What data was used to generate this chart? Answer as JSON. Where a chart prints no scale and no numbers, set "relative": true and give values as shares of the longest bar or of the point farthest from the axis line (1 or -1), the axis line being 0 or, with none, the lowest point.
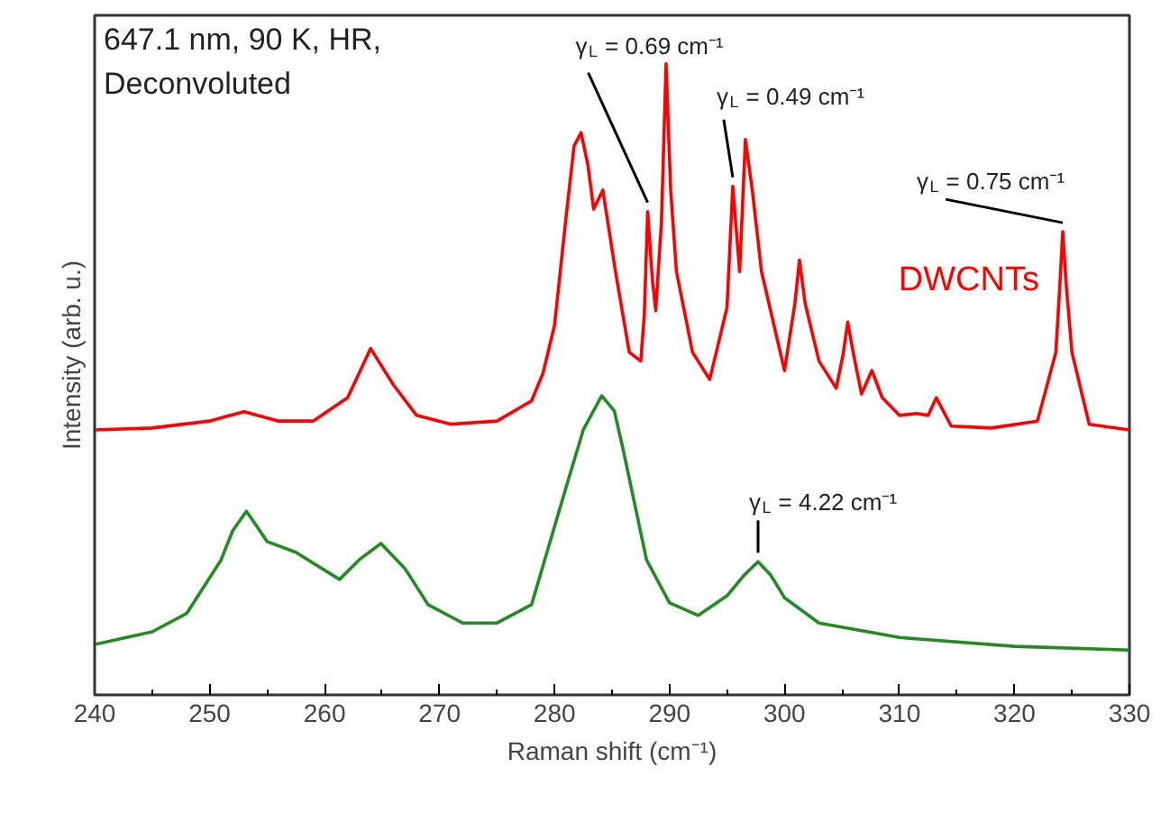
{
  "chart_data": {
    "type": "line",
    "relative": true,
    "xlabel": "Raman shift (cm⁻¹)",
    "ylabel": "Intensity (arb. u.)",
    "xlim": [
      240,
      330
    ],
    "xticks": [
      240,
      250,
      260,
      270,
      280,
      290,
      300,
      310,
      320,
      330
    ],
    "grid": false,
    "marker": "none",
    "line_style": "solid",
    "series": [
      {
        "name": "DWCNTs",
        "color": "#ff0000",
        "x": [
          240,
          245,
          250,
          253,
          256,
          259,
          262,
          264,
          266,
          268,
          271,
          275,
          278,
          279,
          280,
          281,
          281.7,
          282.3,
          282.9,
          283.4,
          284.2,
          285.3,
          286.5,
          287.5,
          287.8,
          288.1,
          288.5,
          288.8,
          289.3,
          289.7,
          290.1,
          290.6,
          292,
          293.5,
          295,
          295.5,
          296.1,
          296.6,
          297.2,
          298,
          300,
          300.9,
          301.3,
          301.8,
          303,
          304.5,
          305.1,
          305.5,
          306,
          306.7,
          307.6,
          308.5,
          310,
          311.5,
          312.5,
          313.2,
          314.5,
          318,
          322,
          323.6,
          323.95,
          324.2,
          324.5,
          325,
          326.5,
          330
        ],
        "values": [
          0.42,
          0.423,
          0.434,
          0.449,
          0.434,
          0.434,
          0.471,
          0.549,
          0.491,
          0.443,
          0.429,
          0.434,
          0.466,
          0.51,
          0.586,
          0.757,
          0.87,
          0.891,
          0.84,
          0.77,
          0.8,
          0.671,
          0.543,
          0.529,
          0.6,
          0.766,
          0.66,
          0.609,
          0.75,
          1.0,
          0.8,
          0.671,
          0.543,
          0.5,
          0.614,
          0.806,
          0.671,
          0.88,
          0.8,
          0.671,
          0.514,
          0.62,
          0.689,
          0.62,
          0.529,
          0.486,
          0.54,
          0.591,
          0.54,
          0.477,
          0.514,
          0.471,
          0.443,
          0.446,
          0.443,
          0.471,
          0.426,
          0.423,
          0.434,
          0.543,
          0.65,
          0.734,
          0.65,
          0.543,
          0.429,
          0.42
        ]
      },
      {
        "color": "#228b22",
        "x": [
          240,
          245,
          248,
          251,
          252,
          253.2,
          254,
          255,
          257.5,
          259,
          261.3,
          263,
          264.9,
          267,
          269,
          272,
          275,
          278,
          281,
          282.5,
          284.1,
          285.2,
          286,
          287,
          288,
          290,
          292.5,
          295,
          296.5,
          297.7,
          298.8,
          300,
          303,
          310,
          320,
          330
        ],
        "values": [
          0.08,
          0.1,
          0.129,
          0.214,
          0.26,
          0.291,
          0.27,
          0.243,
          0.226,
          0.209,
          0.183,
          0.214,
          0.24,
          0.2,
          0.143,
          0.114,
          0.114,
          0.143,
          0.329,
          0.42,
          0.474,
          0.45,
          0.386,
          0.3,
          0.214,
          0.146,
          0.126,
          0.157,
          0.19,
          0.211,
          0.19,
          0.154,
          0.114,
          0.091,
          0.077,
          0.071
        ]
      }
    ],
    "annotations": [
      "647.1 nm, 90 K, HR,\nDeconvoluted",
      {
        "text": "γ$_{L}$ = 0.69 cm⁻¹",
        "x": 288.1,
        "y": 0.766
      },
      {
        "text": "γ$_{L}$ = 0.49 cm⁻¹",
        "x": 295.5,
        "y": 0.806
      },
      {
        "text": "γ$_{L}$ = 0.75 cm⁻¹",
        "x": 324.2,
        "y": 0.734
      },
      {
        "text": "γ$_{L}$ = 4.22 cm⁻¹",
        "x": 297.7,
        "y": 0.211
      }
    ]
  }
}
